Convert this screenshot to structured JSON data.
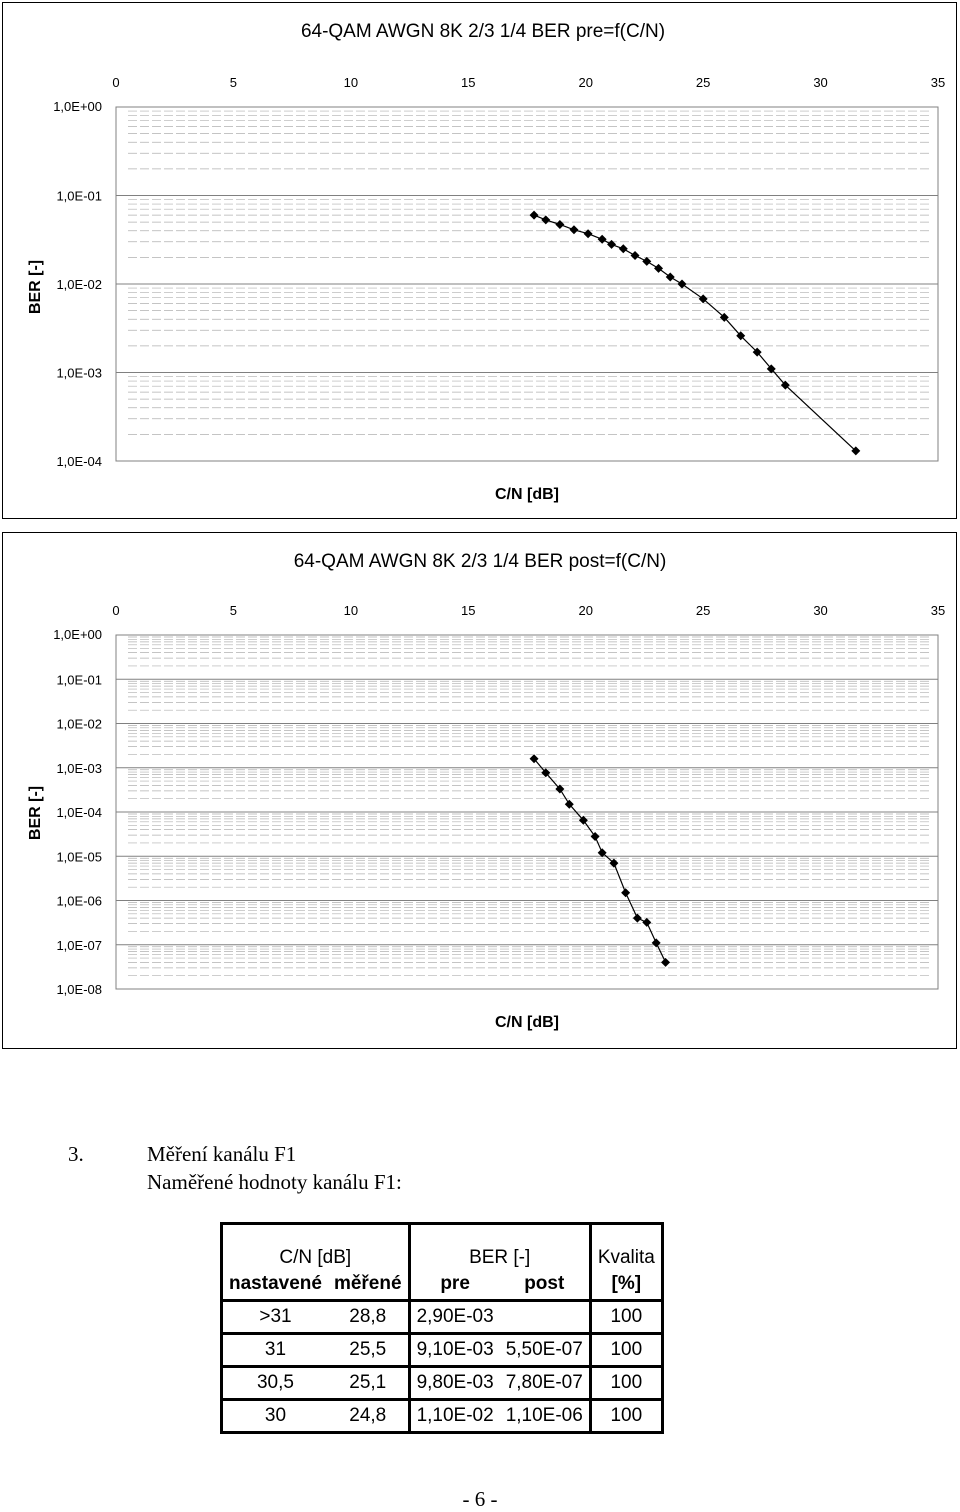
{
  "charts": [
    {
      "title": "64-QAM AWGN 8K 2/3 1/4 BER pre=f(C/N)",
      "xlabel": "C/N [dB]",
      "ylabel": "BER [-]",
      "x_ticks": [
        "0",
        "5",
        "10",
        "15",
        "20",
        "25",
        "30",
        "35"
      ],
      "y_ticks": [
        "1,0E+00",
        "1,0E-01",
        "1,0E-02",
        "1,0E-03",
        "1,0E-04"
      ]
    },
    {
      "title": "64-QAM AWGN 8K 2/3 1/4 BER post=f(C/N)",
      "xlabel": "C/N [dB]",
      "ylabel": "BER [-]",
      "x_ticks": [
        "0",
        "5",
        "10",
        "15",
        "20",
        "25",
        "30",
        "35"
      ],
      "y_ticks": [
        "1,0E+00",
        "1,0E-01",
        "1,0E-02",
        "1,0E-03",
        "1,0E-04",
        "1,0E-05",
        "1,0E-06",
        "1,0E-07",
        "1,0E-08"
      ]
    }
  ],
  "chart_data": [
    {
      "type": "line",
      "title": "64-QAM AWGN 8K 2/3 1/4 BER pre=f(C/N)",
      "xlabel": "C/N [dB]",
      "ylabel": "BER [-]",
      "xlim": [
        0,
        35
      ],
      "ylim": [
        0.0001,
        1
      ],
      "y_scale": "log",
      "grid": true,
      "x_axis_position": "top",
      "marker": "diamond",
      "color": "#000000",
      "x": [
        17.8,
        18.3,
        18.9,
        19.5,
        20.1,
        20.7,
        21.1,
        21.6,
        22.1,
        22.6,
        23.1,
        23.6,
        24.1,
        25.0,
        25.9,
        26.6,
        27.3,
        27.9,
        28.5,
        31.5
      ],
      "y": [
        0.06,
        0.053,
        0.047,
        0.041,
        0.037,
        0.032,
        0.028,
        0.025,
        0.021,
        0.018,
        0.015,
        0.012,
        0.01,
        0.0068,
        0.0042,
        0.0026,
        0.0017,
        0.0011,
        0.00072,
        0.00013
      ]
    },
    {
      "type": "line",
      "title": "64-QAM AWGN 8K 2/3 1/4 BER post=f(C/N)",
      "xlabel": "C/N [dB]",
      "ylabel": "BER [-]",
      "xlim": [
        0,
        35
      ],
      "ylim": [
        1e-08,
        1
      ],
      "y_scale": "log",
      "grid": true,
      "x_axis_position": "top",
      "marker": "diamond",
      "color": "#000000",
      "x": [
        17.8,
        18.3,
        18.9,
        19.3,
        19.9,
        20.4,
        20.7,
        21.2,
        21.7,
        22.2,
        22.6,
        23.0,
        23.4
      ],
      "y": [
        0.0016,
        0.00077,
        0.00033,
        0.00015,
        6.5e-05,
        2.8e-05,
        1.2e-05,
        7e-06,
        1.5e-06,
        4e-07,
        3.2e-07,
        1.1e-07,
        4e-08
      ]
    }
  ],
  "section": {
    "number": "3.",
    "title": "Měření kanálu F1",
    "subtitle": "Naměřené hodnoty kanálu F1:"
  },
  "table": {
    "group_headers": [
      "C/N [dB]",
      "BER [-]",
      "Kvalita"
    ],
    "sub_headers": [
      "nastavené",
      "měřené",
      "pre",
      "post",
      "[%]"
    ],
    "rows": [
      [
        ">31",
        "28,8",
        "2,90E-03",
        "",
        "100"
      ],
      [
        "31",
        "25,5",
        "9,10E-03",
        "5,50E-07",
        "100"
      ],
      [
        "30,5",
        "25,1",
        "9,80E-03",
        "7,80E-07",
        "100"
      ],
      [
        "30",
        "24,8",
        "1,10E-02",
        "1,10E-06",
        "100"
      ]
    ]
  },
  "page_number": "- 6 -"
}
